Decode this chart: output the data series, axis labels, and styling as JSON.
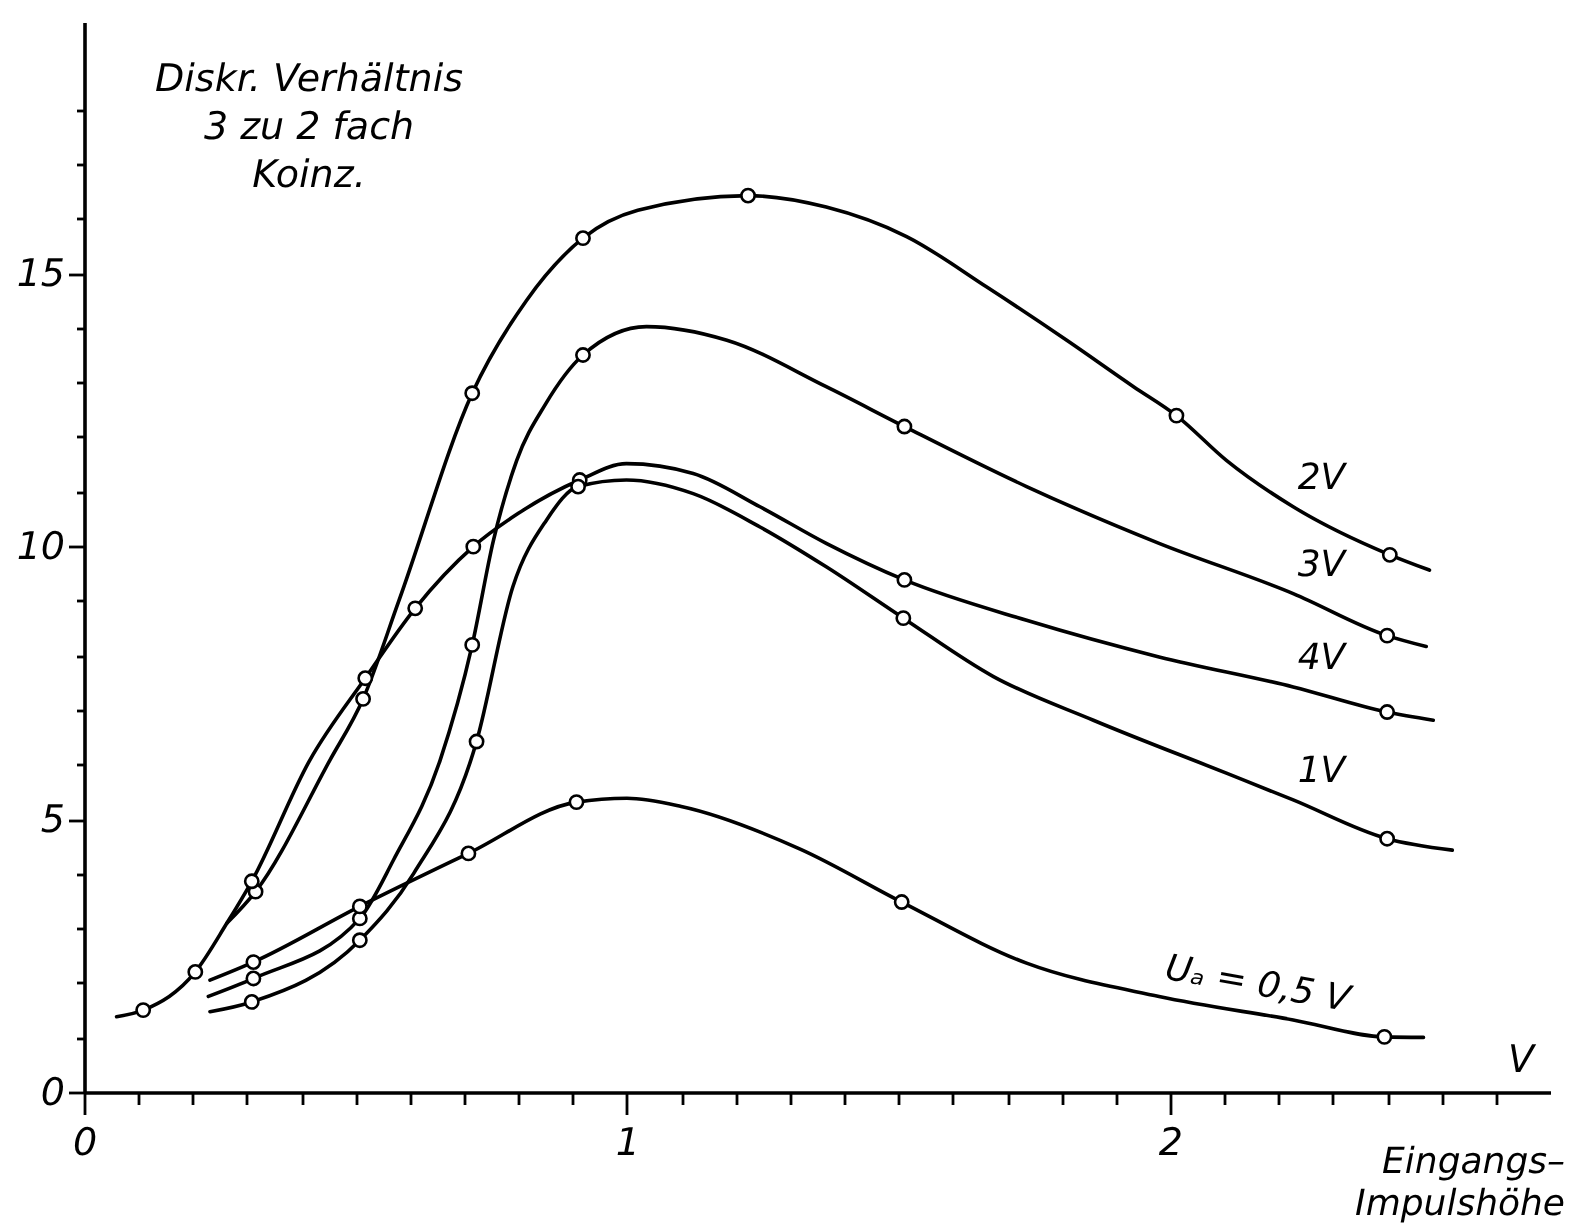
{
  "chart_data": {
    "type": "line",
    "xlabel": "Eingangs–\nImpulshöhe",
    "ylabel": "Diskr. Verhältnis\n3 zu 2 fach\nKoinz.",
    "annotations": [
      "V"
    ],
    "xlim": [
      0,
      2.7
    ],
    "ylim": [
      0,
      19.6
    ],
    "xticks": [
      0,
      {
        "value": 0.1,
        "label": null
      },
      {
        "value": 0.2,
        "label": null
      },
      {
        "value": 0.3,
        "label": null
      },
      {
        "value": 0.4,
        "label": null
      },
      {
        "value": 0.5,
        "label": null
      },
      {
        "value": 0.6,
        "label": null
      },
      {
        "value": 0.7,
        "label": null
      },
      {
        "value": 0.8,
        "label": null
      },
      {
        "value": 0.9,
        "label": null
      },
      1,
      {
        "value": 1.1,
        "label": null
      },
      {
        "value": 1.2,
        "label": null
      },
      {
        "value": 1.3,
        "label": null
      },
      {
        "value": 1.4,
        "label": null
      },
      {
        "value": 1.5,
        "label": null
      },
      {
        "value": 1.6,
        "label": null
      },
      {
        "value": 1.7,
        "label": null
      },
      {
        "value": 1.8,
        "label": null
      },
      {
        "value": 1.9,
        "label": null
      },
      2,
      {
        "value": 2.1,
        "label": null
      },
      {
        "value": 2.2,
        "label": null
      },
      {
        "value": 2.3,
        "label": null
      },
      {
        "value": 2.4,
        "label": null
      },
      {
        "value": 2.5,
        "label": null
      },
      {
        "value": 2.6,
        "label": null
      }
    ],
    "yticks": [
      0,
      {
        "value": 1,
        "label": null
      },
      {
        "value": 2,
        "label": null
      },
      {
        "value": 3,
        "label": null
      },
      {
        "value": 4,
        "label": null
      },
      5,
      {
        "value": 6,
        "label": null
      },
      {
        "value": 7,
        "label": null
      },
      {
        "value": 8,
        "label": null
      },
      {
        "value": 9,
        "label": null
      },
      10,
      {
        "value": 11,
        "label": null
      },
      {
        "value": 12,
        "label": null
      },
      {
        "value": 13,
        "label": null
      },
      {
        "value": 14,
        "label": null
      },
      15,
      {
        "value": 16,
        "label": null
      },
      {
        "value": 17,
        "label": null
      },
      {
        "value": 18,
        "label": null
      }
    ],
    "grid": false,
    "line_style": "solid",
    "series": [
      {
        "name": "2V",
        "color": "#000000",
        "x": [
          0.263,
          0.316,
          0.453,
          0.514,
          0.58,
          0.715,
          0.815,
          0.919,
          1.02,
          1.223,
          1.367,
          1.515,
          1.662,
          1.81,
          1.933,
          2.012,
          2.104,
          2.227,
          2.405,
          2.478
        ],
        "values": [
          3.09,
          3.67,
          6.08,
          7.2,
          9.0,
          12.8,
          14.5,
          15.64,
          16.15,
          16.42,
          16.21,
          15.67,
          14.75,
          13.77,
          12.92,
          12.39,
          11.57,
          10.72,
          9.84,
          9.56
        ]
      },
      {
        "type": "scatter",
        "marker": "circle",
        "color": "#000000",
        "x": [
          0.316,
          0.514,
          0.715,
          0.919,
          1.223,
          2.012,
          2.405
        ],
        "values": [
          3.67,
          7.2,
          12.8,
          15.64,
          16.42,
          12.39,
          9.84
        ]
      },
      {
        "name": "3V",
        "color": "#000000",
        "x": [
          0.229,
          0.312,
          0.508,
          0.57,
          0.656,
          0.715,
          0.754,
          0.797,
          0.85,
          0.919,
          1.036,
          1.184,
          1.367,
          1.511,
          1.736,
          1.98,
          2.227,
          2.4,
          2.472
        ],
        "values": [
          1.75,
          2.08,
          3.18,
          4.25,
          6.08,
          8.19,
          10.1,
          11.57,
          12.6,
          13.5,
          14.02,
          13.77,
          12.92,
          12.19,
          11.09,
          10.05,
          9.13,
          8.36,
          8.16
        ]
      },
      {
        "type": "scatter",
        "marker": "circle",
        "color": "#000000",
        "x": [
          0.312,
          0.508,
          0.715,
          0.919,
          1.511,
          2.4
        ],
        "values": [
          2.08,
          3.18,
          8.19,
          13.5,
          12.19,
          8.36
        ]
      },
      {
        "name": "4V",
        "color": "#000000",
        "x": [
          0.06,
          0.109,
          0.205,
          0.263,
          0.309,
          0.416,
          0.518,
          0.61,
          0.717,
          0.8,
          0.913,
          0.999,
          1.122,
          1.245,
          1.367,
          1.511,
          1.736,
          1.98,
          2.227,
          2.4,
          2.485
        ],
        "values": [
          1.38,
          1.5,
          2.2,
          3.09,
          3.86,
          6.08,
          7.58,
          8.86,
          9.99,
          10.6,
          11.21,
          11.51,
          11.33,
          10.72,
          10.05,
          9.38,
          8.64,
          7.97,
          7.42,
          6.96,
          6.81
        ]
      },
      {
        "type": "scatter",
        "marker": "circle",
        "color": "#000000",
        "x": [
          0.109,
          0.205,
          0.309,
          0.518,
          0.61,
          0.717,
          0.913,
          1.511,
          2.4
        ],
        "values": [
          1.5,
          2.2,
          3.86,
          7.58,
          8.86,
          9.99,
          11.21,
          9.38,
          6.96
        ]
      },
      {
        "name": "1V",
        "color": "#000000",
        "x": [
          0.232,
          0.309,
          0.508,
          0.607,
          0.723,
          0.79,
          0.852,
          0.91,
          0.999,
          1.122,
          1.245,
          1.367,
          1.509,
          1.675,
          1.859,
          2.104,
          2.227,
          2.4,
          2.52
        ],
        "values": [
          1.47,
          1.65,
          2.78,
          4.0,
          6.42,
          9.26,
          10.48,
          11.09,
          11.21,
          10.96,
          10.35,
          9.62,
          8.68,
          7.61,
          6.81,
          5.84,
          5.35,
          4.64,
          4.43
        ]
      },
      {
        "type": "scatter",
        "marker": "circle",
        "color": "#000000",
        "x": [
          0.309,
          0.508,
          0.723,
          0.91,
          1.509,
          2.4
        ],
        "values": [
          1.65,
          2.78,
          6.42,
          11.09,
          8.68,
          4.64
        ]
      },
      {
        "name": "Uₐ = 0,5 V",
        "color": "#000000",
        "x": [
          0.232,
          0.312,
          0.508,
          0.708,
          0.907,
          1.0,
          1.1,
          1.319,
          1.506,
          1.736,
          1.98,
          2.227,
          2.395,
          2.467
        ],
        "values": [
          2.05,
          2.38,
          3.4,
          4.37,
          5.31,
          5.38,
          5.23,
          4.45,
          3.48,
          2.36,
          1.75,
          1.32,
          1.01,
          1.0
        ]
      },
      {
        "type": "scatter",
        "marker": "circle",
        "color": "#000000",
        "x": [
          0.312,
          0.508,
          0.708,
          0.907,
          1.506,
          2.395
        ],
        "values": [
          2.38,
          3.4,
          4.37,
          5.31,
          3.48,
          1.01
        ]
      }
    ]
  }
}
